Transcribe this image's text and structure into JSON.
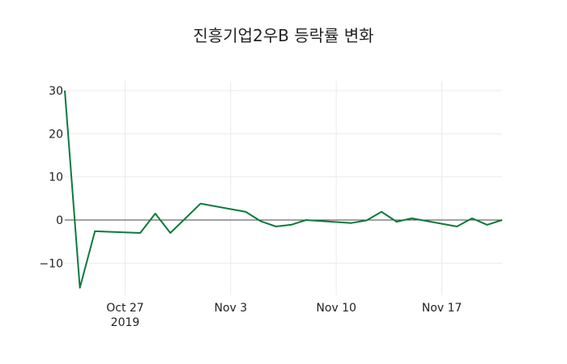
{
  "chart_data": {
    "type": "line",
    "title": "진흥기업2우B 등락률 변화",
    "xlabel": "",
    "ylabel": "",
    "x": [
      "2019-10-23",
      "2019-10-24",
      "2019-10-25",
      "2019-10-28",
      "2019-10-29",
      "2019-10-30",
      "2019-11-01",
      "2019-11-04",
      "2019-11-05",
      "2019-11-06",
      "2019-11-07",
      "2019-11-08",
      "2019-11-11",
      "2019-11-12",
      "2019-11-13",
      "2019-11-14",
      "2019-11-15",
      "2019-11-18",
      "2019-11-19",
      "2019-11-20",
      "2019-11-21"
    ],
    "series": [
      {
        "name": "등락률",
        "color": "#0b7a3e",
        "values": [
          30.0,
          -15.7,
          -2.6,
          -3.0,
          1.5,
          -3.0,
          3.8,
          1.9,
          -0.3,
          -1.5,
          -1.1,
          0.0,
          -0.7,
          -0.1,
          1.9,
          -0.4,
          0.4,
          -1.5,
          0.4,
          -1.1,
          0.0
        ]
      }
    ],
    "x_ticks": [
      {
        "date": "2019-10-27",
        "label": "Oct 27",
        "sublabel": "2019"
      },
      {
        "date": "2019-11-03",
        "label": "Nov 3",
        "sublabel": ""
      },
      {
        "date": "2019-11-10",
        "label": "Nov 10",
        "sublabel": ""
      },
      {
        "date": "2019-11-17",
        "label": "Nov 17",
        "sublabel": ""
      }
    ],
    "y_ticks": [
      -10,
      0,
      10,
      20,
      30
    ],
    "y_tick_labels": [
      "−10",
      "0",
      "10",
      "20",
      "30"
    ],
    "ylim": [
      -16.5,
      31.5
    ],
    "xlim": [
      "2019-10-23",
      "2019-11-21"
    ],
    "grid": true,
    "zero_line": true,
    "legend": "none"
  }
}
